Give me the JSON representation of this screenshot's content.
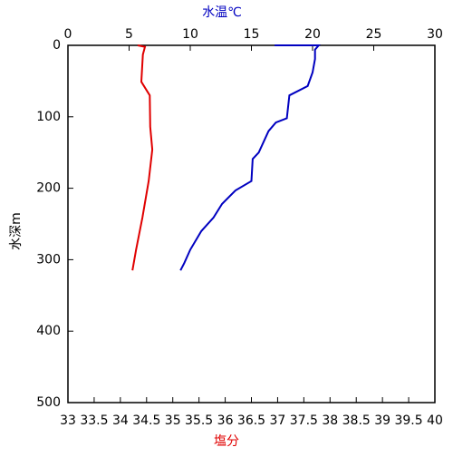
{
  "chart_data": {
    "type": "line",
    "xlabel": "塩分",
    "xlim": [
      33,
      40
    ],
    "xticks": [
      33,
      33.5,
      34,
      34.5,
      35,
      35.5,
      36,
      36.5,
      37,
      37.5,
      38,
      38.5,
      39,
      39.5,
      40
    ],
    "x2label": "水温℃",
    "x2lim": [
      0,
      30
    ],
    "x2ticks": [
      0,
      5,
      10,
      15,
      20,
      25,
      30
    ],
    "ylabel": "水深m",
    "ylim": [
      0,
      500
    ],
    "yticks": [
      0,
      100,
      200,
      300,
      400,
      500
    ],
    "y_inverted": true,
    "series": [
      {
        "color": "#0000c0",
        "axis": "x2",
        "x": [
          16.9,
          20.5,
          20.2,
          20.2,
          20.0,
          19.6,
          18.1,
          17.9,
          17.0,
          16.4,
          15.6,
          15.1,
          15.0,
          13.7,
          12.6,
          11.9,
          10.9,
          10.0,
          9.5,
          9.2
        ],
        "values": [
          0,
          0,
          6,
          19,
          38,
          57,
          70,
          102,
          108,
          120,
          150,
          159,
          190,
          203,
          222,
          241,
          260,
          286,
          305,
          315
        ]
      },
      {
        "color": "#e00000",
        "axis": "x",
        "x": [
          34.33,
          34.47,
          34.43,
          34.4,
          34.56,
          34.57,
          34.61,
          34.54,
          34.42,
          34.3,
          34.23
        ],
        "values": [
          0,
          2,
          13,
          51,
          70,
          114,
          146,
          190,
          241,
          286,
          315
        ]
      }
    ]
  }
}
